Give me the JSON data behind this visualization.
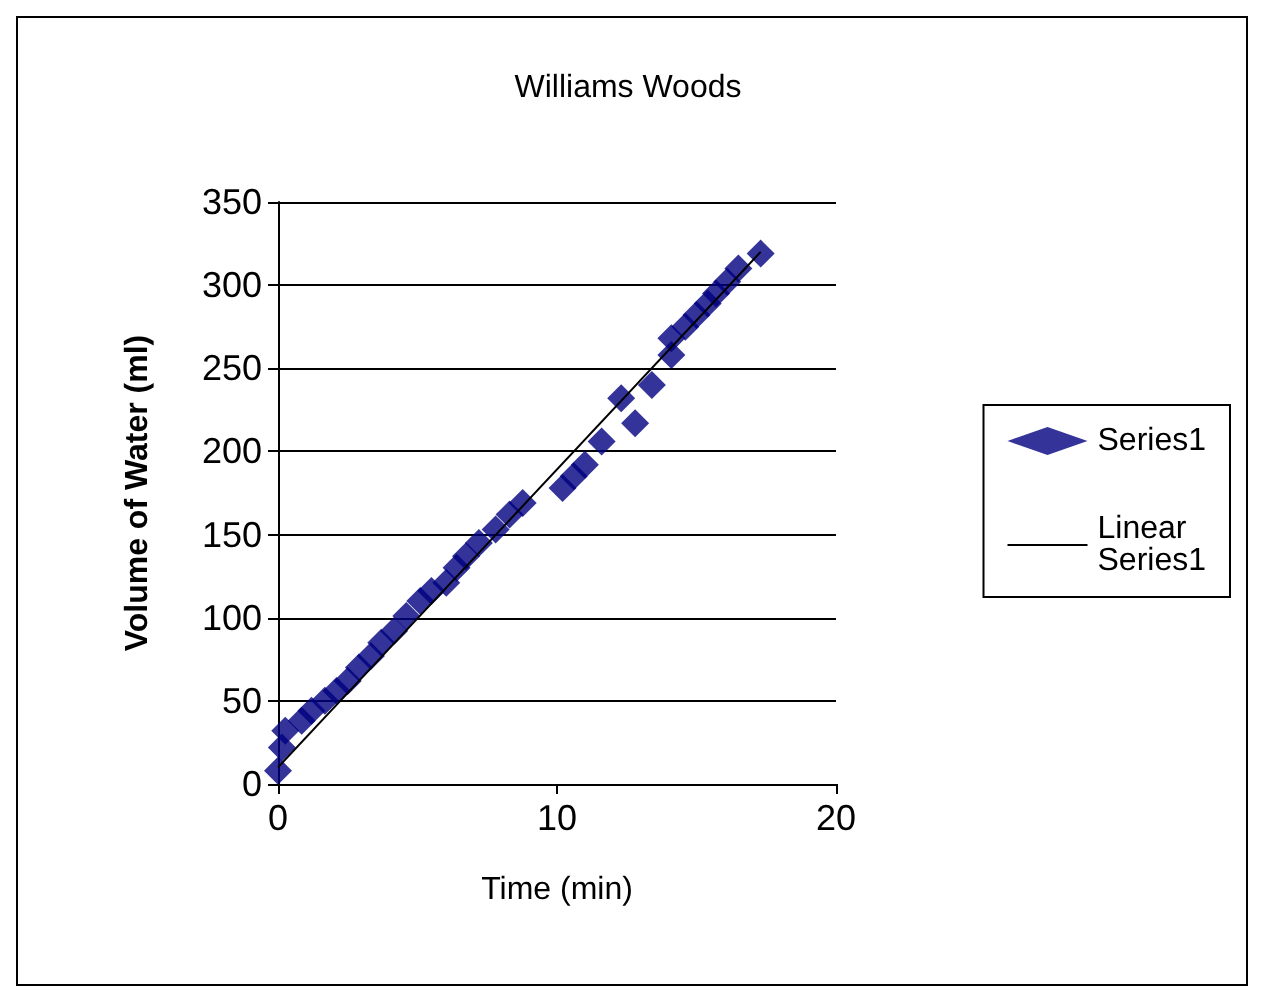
{
  "chart_data": {
    "type": "scatter",
    "title": "Williams Woods",
    "xlabel": "Time (min)",
    "ylabel": "Volume of Water (ml)",
    "xlim": [
      0,
      20
    ],
    "xticks": [
      0,
      10,
      20
    ],
    "ylim": [
      0,
      350
    ],
    "yticks": [
      0,
      50,
      100,
      150,
      200,
      250,
      300,
      350
    ],
    "grid": "y",
    "legend": "right",
    "marker": "diamond",
    "series": [
      {
        "name": "Series1",
        "color": "#000080",
        "x": [
          0,
          0.14,
          0.26,
          0.85,
          1.2,
          1.68,
          2.1,
          2.5,
          2.9,
          3.33,
          3.7,
          4.16,
          4.6,
          5.1,
          5.5,
          6.03,
          6.4,
          6.74,
          7.2,
          7.8,
          8.3,
          8.77,
          10.2,
          10.6,
          11.0,
          11.6,
          12.3,
          12.8,
          13.4,
          14.1,
          14.1,
          14.6,
          15.0,
          15.4,
          15.7,
          16.1,
          16.5,
          17.3
        ],
        "values": [
          8,
          22,
          32,
          38,
          44,
          50,
          56,
          62,
          70,
          77,
          85,
          92,
          101,
          110,
          116,
          121,
          130,
          137,
          145,
          153,
          162,
          169,
          178,
          185,
          192,
          206,
          232,
          217,
          240,
          258,
          268,
          275,
          282,
          289,
          295,
          302,
          310,
          319
        ]
      },
      {
        "name": "Linear Series1",
        "type": "line",
        "color": "#000000",
        "marker": "none",
        "x": [
          0,
          17.3
        ],
        "values": [
          10,
          320
        ]
      }
    ]
  }
}
